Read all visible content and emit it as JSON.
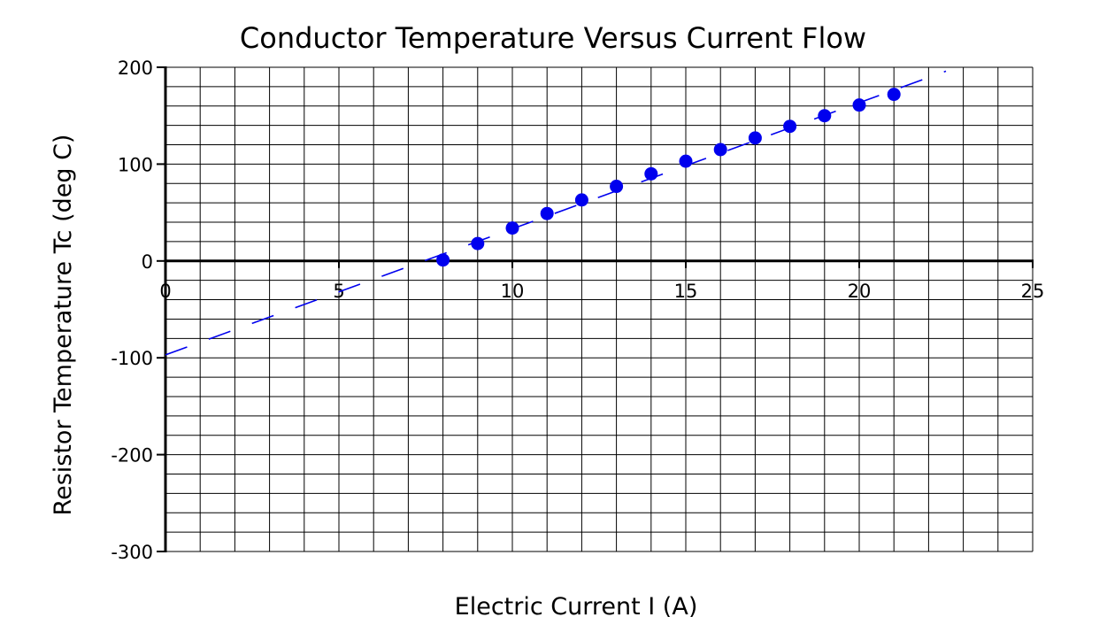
{
  "chart_data": {
    "type": "scatter",
    "title": "Conductor Temperature Versus Current Flow",
    "xlabel": "Electric Current I (A)",
    "ylabel": "Resistor Temperature Tc (deg C)",
    "xlim": [
      0,
      25
    ],
    "ylim": [
      -300,
      200
    ],
    "x_ticks": [
      0,
      5,
      10,
      15,
      20,
      25
    ],
    "y_ticks": [
      200,
      100,
      0,
      -100,
      -200,
      -300
    ],
    "grid": true,
    "legend": "none",
    "series": [
      {
        "type": "scatter",
        "color": "#0000ee",
        "points": [
          {
            "x": 8,
            "y": 1
          },
          {
            "x": 9,
            "y": 18
          },
          {
            "x": 10,
            "y": 34
          },
          {
            "x": 11,
            "y": 49
          },
          {
            "x": 12,
            "y": 63
          },
          {
            "x": 13,
            "y": 77
          },
          {
            "x": 14,
            "y": 90
          },
          {
            "x": 15,
            "y": 103
          },
          {
            "x": 16,
            "y": 115
          },
          {
            "x": 17,
            "y": 127
          },
          {
            "x": 18,
            "y": 139
          },
          {
            "x": 19,
            "y": 150
          },
          {
            "x": 20,
            "y": 161
          },
          {
            "x": 21,
            "y": 172
          }
        ]
      },
      {
        "type": "line",
        "style": "dashed",
        "color": "#0000ee",
        "points": [
          {
            "x": 0,
            "y": -97
          },
          {
            "x": 22.5,
            "y": 196
          }
        ]
      }
    ]
  }
}
